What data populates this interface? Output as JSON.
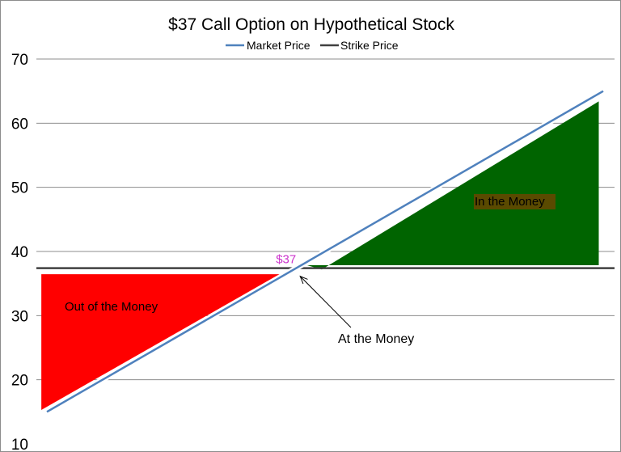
{
  "chart_data": {
    "type": "line",
    "title": "$37 Call Option on Hypothetical Stock",
    "xlabel": "",
    "ylabel": "",
    "ylim": [
      10,
      70
    ],
    "yticks": [
      10,
      20,
      30,
      40,
      50,
      60,
      70
    ],
    "grid": true,
    "legend_position": "top",
    "series": [
      {
        "name": "Market Price",
        "color": "#4f81bd",
        "x": [
          0,
          1
        ],
        "y": [
          15,
          65
        ]
      },
      {
        "name": "Strike Price",
        "color": "#404040",
        "x": [
          0,
          1
        ],
        "y": [
          37.4,
          37.4
        ]
      }
    ],
    "regions": [
      {
        "label": "Out of the Money",
        "color": "#ff0000"
      },
      {
        "label": "In the Money",
        "color": "#006400"
      }
    ],
    "annotations": {
      "strike_label": "$37",
      "strike_label_color": "#cc33cc",
      "at_the_money": "At the Money"
    }
  }
}
